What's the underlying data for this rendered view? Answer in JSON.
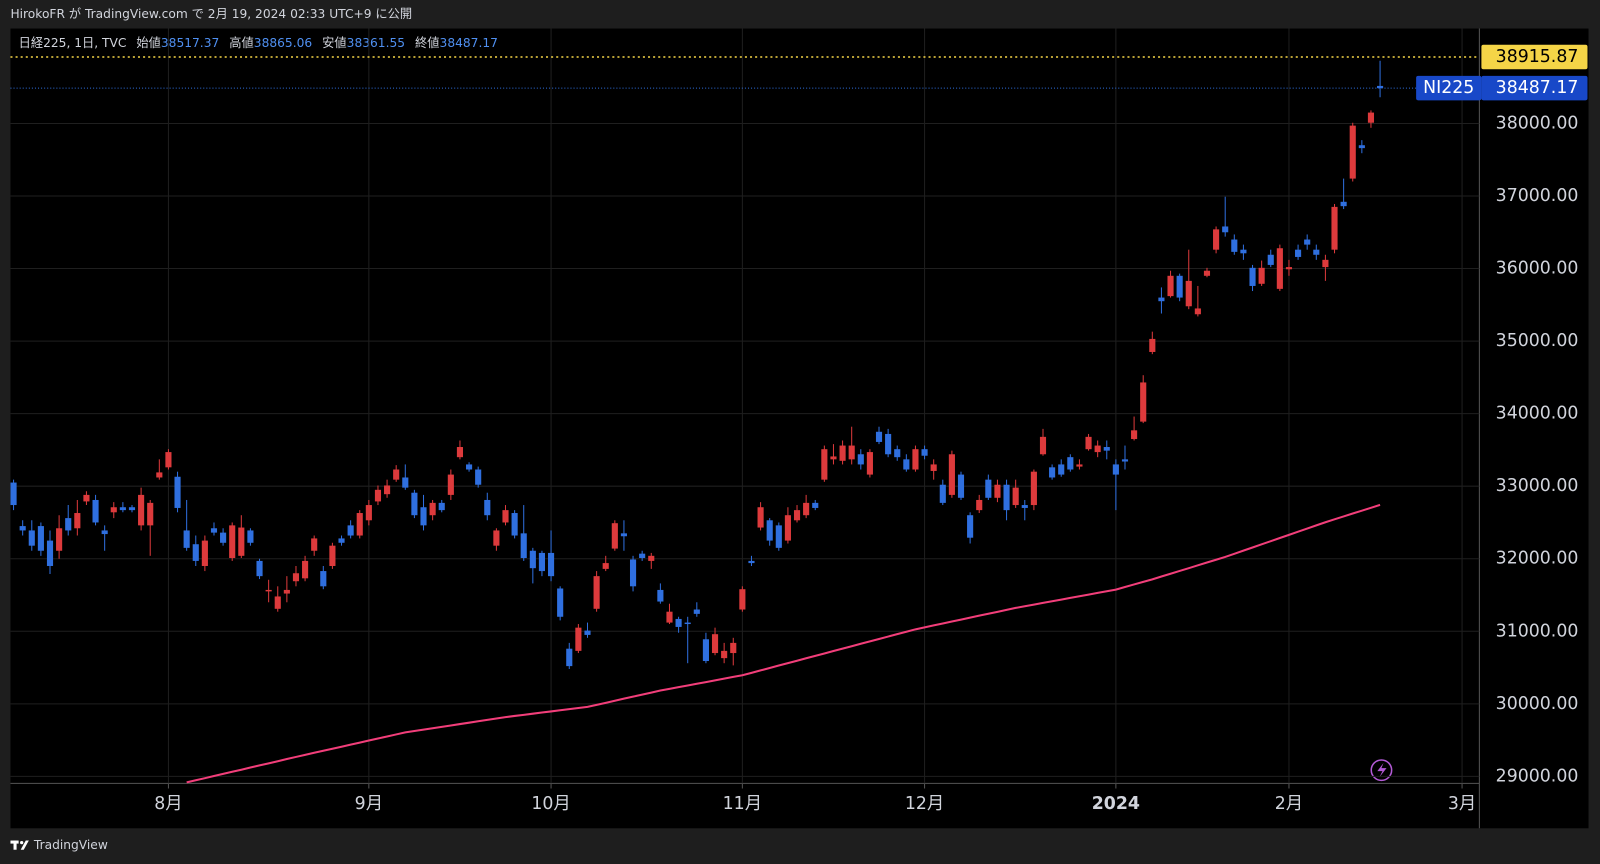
{
  "chart_data": {
    "type": "candlestick",
    "header": "HirokoFR が TradingView.com で 2月 19, 2024 02:33 UTC+9 に公開",
    "legend": {
      "symbol": "日経225, 1日, TVC",
      "open_label": "始値",
      "high_label": "高値",
      "low_label": "安値",
      "close_label": "終値"
    },
    "ticker": "NI225",
    "brand": "TradingView",
    "price_line": 38915.87,
    "up_color": "#dd3a3c",
    "down_color": "#2f6fdf",
    "open": [
      33050,
      32450,
      32390,
      32450,
      32250,
      32110,
      32560,
      32420,
      32790,
      32810,
      32390,
      32640,
      32710,
      32710,
      32460,
      32460,
      33120,
      33260,
      33130,
      32390,
      32200,
      31900,
      32420,
      32360,
      32010,
      32040,
      32390,
      31970,
      31550,
      31310,
      31520,
      31690,
      31730,
      32110,
      31830,
      31900,
      32280,
      32460,
      32320,
      32530,
      32790,
      32890,
      33090,
      33120,
      32910,
      32710,
      32600,
      32770,
      32880,
      33400,
      33300,
      33230,
      32810,
      32180,
      32500,
      32630,
      32350,
      32110,
      32080,
      32080,
      31590,
      30760,
      30730,
      31010,
      31310,
      31860,
      32140,
      32350,
      31990,
      32070,
      31970,
      31570,
      31120,
      31170,
      31120,
      31300,
      30890,
      30700,
      30630,
      30700,
      31300,
      31970,
      32430,
      32530,
      32460,
      32250,
      32530,
      32600,
      32770,
      33090,
      33370,
      33350,
      33370,
      33440,
      33160,
      33750,
      33720,
      33510,
      33370,
      33230,
      33510,
      33210,
      33020,
      32880,
      33160,
      32600,
      32670,
      33090,
      32840,
      33020,
      32740,
      32740,
      32740,
      33440,
      33260,
      33300,
      33400,
      33270,
      33510,
      33470,
      33540,
      33300,
      33370,
      33650,
      33890,
      34850,
      35600,
      35620,
      35900,
      35480,
      35370,
      35900,
      36260,
      36580,
      36400,
      36260,
      36010,
      35790,
      36190,
      35720,
      35990,
      36260,
      36400,
      36260,
      36020,
      36260,
      36920,
      37240,
      37700,
      38010,
      38517.37
    ],
    "high": [
      33090,
      32530,
      32530,
      32500,
      32390,
      32600,
      32740,
      32810,
      32930,
      32880,
      32460,
      32780,
      32780,
      32740,
      32980,
      32810,
      33370,
      33510,
      33200,
      32810,
      32320,
      32320,
      32500,
      32420,
      32500,
      32600,
      32420,
      32000,
      31710,
      31620,
      31760,
      31900,
      32040,
      32320,
      31900,
      32220,
      32320,
      32530,
      32670,
      32810,
      33010,
      33090,
      33290,
      33300,
      32950,
      32880,
      32810,
      32810,
      33230,
      33630,
      33330,
      33270,
      32910,
      32420,
      32740,
      32670,
      32740,
      32150,
      32110,
      32390,
      31620,
      30840,
      31100,
      31120,
      31830,
      32040,
      32530,
      32530,
      32040,
      32110,
      32080,
      31660,
      31380,
      31200,
      31200,
      31400,
      30980,
      31050,
      30840,
      30910,
      31620,
      32040,
      32780,
      32560,
      32500,
      32710,
      32740,
      32880,
      32810,
      33560,
      33580,
      33630,
      33820,
      33510,
      33510,
      33820,
      33790,
      33560,
      33440,
      33560,
      33560,
      33370,
      33090,
      33490,
      33200,
      32640,
      32880,
      33160,
      33090,
      33090,
      33090,
      32810,
      33230,
      33790,
      33300,
      33370,
      33440,
      33370,
      33720,
      33630,
      33630,
      33370,
      33560,
      33960,
      34530,
      35130,
      35740,
      35970,
      35930,
      36260,
      35760,
      36010,
      36580,
      36990,
      36470,
      36330,
      36050,
      36110,
      36260,
      36330,
      36120,
      36330,
      36470,
      36330,
      36190,
      36890,
      37240,
      38010,
      37770,
      38180,
      38865.06
    ],
    "low": [
      32670,
      32320,
      32110,
      32040,
      31790,
      32000,
      32320,
      32320,
      32740,
      32460,
      32110,
      32560,
      32640,
      32640,
      32390,
      32040,
      33090,
      33230,
      32640,
      32110,
      31900,
      31830,
      32320,
      32180,
      31970,
      32010,
      32180,
      31720,
      31400,
      31270,
      31400,
      31620,
      31690,
      32040,
      31580,
      31860,
      32180,
      32280,
      32280,
      32460,
      32740,
      32840,
      33060,
      32950,
      32560,
      32390,
      32530,
      32640,
      32810,
      33370,
      33200,
      32980,
      32530,
      32110,
      32460,
      32280,
      31970,
      31660,
      31760,
      31690,
      31150,
      30480,
      30700,
      30910,
      31270,
      31830,
      32110,
      32110,
      31550,
      31970,
      31860,
      31380,
      31100,
      30980,
      30560,
      31200,
      30560,
      30670,
      30560,
      30530,
      31270,
      31900,
      32390,
      32180,
      32110,
      32210,
      32500,
      32560,
      32670,
      33060,
      33300,
      33300,
      33300,
      33230,
      33120,
      33580,
      33400,
      33350,
      33200,
      33200,
      33370,
      33090,
      32740,
      32840,
      32810,
      32210,
      32630,
      32810,
      32780,
      32530,
      32700,
      32530,
      32670,
      33420,
      33090,
      33130,
      33200,
      33230,
      33490,
      33400,
      33370,
      32670,
      33230,
      33630,
      33870,
      34820,
      35380,
      35600,
      35550,
      35440,
      35340,
      35880,
      36210,
      36440,
      36190,
      36120,
      35690,
      35760,
      36020,
      35690,
      35900,
      36120,
      36260,
      36120,
      35830,
      36210,
      36820,
      37200,
      37590,
      37940,
      38361.55
    ],
    "close": [
      32740,
      32390,
      32180,
      32110,
      31900,
      32420,
      32390,
      32630,
      32880,
      32500,
      32340,
      32710,
      32670,
      32670,
      32880,
      32770,
      33190,
      33470,
      32700,
      32150,
      31970,
      32250,
      32360,
      32220,
      32460,
      32430,
      32220,
      31760,
      31570,
      31480,
      31570,
      31800,
      31970,
      32280,
      31620,
      32180,
      32220,
      32320,
      32630,
      32740,
      32950,
      33010,
      33230,
      32980,
      32600,
      32460,
      32770,
      32670,
      33160,
      33540,
      33230,
      33020,
      32600,
      32390,
      32670,
      32320,
      32010,
      31870,
      31830,
      31760,
      31200,
      30520,
      31050,
      30950,
      31760,
      31940,
      32490,
      32310,
      31620,
      32010,
      32040,
      31410,
      31270,
      31060,
      31100,
      31240,
      30590,
      30960,
      30730,
      30840,
      31580,
      31940,
      32710,
      32250,
      32150,
      32600,
      32670,
      32770,
      32700,
      33510,
      33410,
      33560,
      33560,
      33300,
      33470,
      33610,
      33440,
      33400,
      33230,
      33510,
      33420,
      33300,
      32770,
      33440,
      32840,
      32290,
      32810,
      32840,
      33020,
      32670,
      32980,
      32700,
      33200,
      33680,
      33120,
      33160,
      33230,
      33300,
      33680,
      33560,
      33490,
      33160,
      33340,
      33770,
      34430,
      35030,
      35550,
      35900,
      35600,
      35830,
      35450,
      35970,
      36540,
      36500,
      36230,
      36210,
      35760,
      36010,
      36050,
      36280,
      36020,
      36160,
      36330,
      36190,
      36120,
      36850,
      36860,
      37970,
      37660,
      38150,
      38487.17
    ],
    "ma": {
      "color": "#f23e7a",
      "values": [
        null,
        null,
        null,
        null,
        null,
        null,
        null,
        null,
        null,
        null,
        null,
        null,
        null,
        null,
        null,
        null,
        null,
        null,
        null,
        28917,
        28946,
        28975,
        29005,
        29034,
        29063,
        29092,
        29122,
        29151,
        29180,
        29209,
        29239,
        29268,
        29297,
        29325,
        29353,
        29381,
        29409,
        29437,
        29466,
        29494,
        29522,
        29550,
        29578,
        29606,
        29625,
        29644,
        29664,
        29683,
        29702,
        29721,
        29740,
        29760,
        29779,
        29798,
        29817,
        29833,
        29848,
        29864,
        29880,
        29895,
        29911,
        29927,
        29942,
        29958,
        29986,
        30014,
        30042,
        30071,
        30099,
        30127,
        30155,
        30183,
        30206,
        30230,
        30253,
        30277,
        30300,
        30324,
        30347,
        30371,
        30394,
        30427,
        30461,
        30494,
        30528,
        30561,
        30594,
        30628,
        30661,
        30694,
        30728,
        30761,
        30794,
        30828,
        30861,
        30894,
        30927,
        30961,
        30994,
        31027,
        31054,
        31081,
        31107,
        31134,
        31161,
        31188,
        31215,
        31241,
        31268,
        31295,
        31322,
        31345,
        31368,
        31391,
        31414,
        31437,
        31460,
        31483,
        31506,
        31529,
        31552,
        31575,
        31610,
        31646,
        31681,
        31716,
        31755,
        31793,
        31832,
        31870,
        31909,
        31948,
        31986,
        32025,
        32068,
        32112,
        32155,
        32199,
        32242,
        32286,
        32329,
        32373,
        32416,
        32460,
        32503,
        32543,
        32583,
        32623,
        32662,
        32702,
        32742
      ]
    },
    "xlim": [
      -0.34,
      160.9
    ],
    "xticks": [
      {
        "value": 17,
        "label": "8月"
      },
      {
        "value": 39,
        "label": "9月"
      },
      {
        "value": 59,
        "label": "10月"
      },
      {
        "value": 80,
        "label": "11月"
      },
      {
        "value": 100,
        "label": "12月"
      },
      {
        "value": 121,
        "label": "2024"
      },
      {
        "value": 140,
        "label": "2月"
      },
      {
        "value": 159,
        "label": "3月"
      }
    ],
    "ylim": [
      28903,
      39308
    ],
    "yticks": [
      {
        "value": 29000,
        "label": "29000.00"
      },
      {
        "value": 30000,
        "label": "30000.00"
      },
      {
        "value": 31000,
        "label": "31000.00"
      },
      {
        "value": 32000,
        "label": "32000.00"
      },
      {
        "value": 33000,
        "label": "33000.00"
      },
      {
        "value": 34000,
        "label": "34000.00"
      },
      {
        "value": 35000,
        "label": "35000.00"
      },
      {
        "value": 36000,
        "label": "36000.00"
      },
      {
        "value": 37000,
        "label": "37000.00"
      },
      {
        "value": 38000,
        "label": "38000.00"
      }
    ],
    "grid": true
  }
}
